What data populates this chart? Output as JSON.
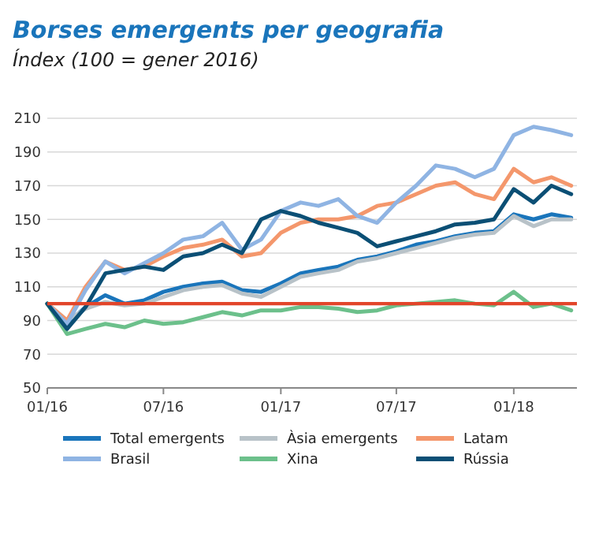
{
  "chart_data": {
    "type": "line",
    "title": "Borses emergents per geografia",
    "subtitle": "Índex (100 = gener 2016)",
    "x": [
      "2016-01-01",
      "2016-02-01",
      "2016-03-01",
      "2016-04-01",
      "2016-05-01",
      "2016-06-01",
      "2016-07-01",
      "2016-08-01",
      "2016-09-01",
      "2016-10-01",
      "2016-11-01",
      "2016-12-01",
      "2017-01-01",
      "2017-02-01",
      "2017-03-01",
      "2017-04-01",
      "2017-05-01",
      "2017-06-01",
      "2017-07-01",
      "2017-08-01",
      "2017-09-01",
      "2017-10-01",
      "2017-11-01",
      "2017-12-01",
      "2018-01-01",
      "2018-02-01",
      "2018-03-01",
      "2018-04-01"
    ],
    "series": [
      {
        "name": "Total emergents",
        "color": "#1a75bb",
        "values": [
          100,
          88,
          98,
          105,
          100,
          102,
          107,
          110,
          112,
          113,
          108,
          107,
          112,
          118,
          120,
          122,
          126,
          128,
          131,
          135,
          137,
          140,
          142,
          143,
          153,
          150,
          153,
          151
        ]
      },
      {
        "name": "Àsia emergents",
        "color": "#b8c2c8",
        "values": [
          100,
          90,
          97,
          101,
          99,
          100,
          104,
          108,
          110,
          111,
          106,
          104,
          110,
          116,
          118,
          120,
          125,
          127,
          130,
          133,
          136,
          139,
          141,
          142,
          152,
          146,
          150,
          150
        ]
      },
      {
        "name": "Latam",
        "color": "#f4976c",
        "values": [
          100,
          90,
          110,
          125,
          120,
          122,
          128,
          133,
          135,
          138,
          128,
          130,
          142,
          148,
          150,
          150,
          152,
          158,
          160,
          165,
          170,
          172,
          165,
          162,
          180,
          172,
          175,
          170
        ]
      },
      {
        "name": "Brasil",
        "color": "#8fb4e3",
        "values": [
          100,
          88,
          108,
          125,
          118,
          124,
          130,
          138,
          140,
          148,
          132,
          138,
          155,
          160,
          158,
          162,
          152,
          148,
          160,
          170,
          182,
          180,
          175,
          180,
          200,
          205,
          203,
          200
        ]
      },
      {
        "name": "Xina",
        "color": "#6cc08b",
        "values": [
          100,
          82,
          85,
          88,
          86,
          90,
          88,
          89,
          92,
          95,
          93,
          96,
          96,
          98,
          98,
          97,
          95,
          96,
          99,
          100,
          101,
          102,
          100,
          99,
          107,
          98,
          100,
          96
        ]
      },
      {
        "name": "Rússia",
        "color": "#0b4f75",
        "values": [
          100,
          85,
          98,
          118,
          120,
          122,
          120,
          128,
          130,
          135,
          130,
          150,
          155,
          152,
          148,
          145,
          142,
          134,
          137,
          140,
          143,
          147,
          148,
          150,
          168,
          160,
          170,
          165
        ]
      }
    ],
    "xlim": [
      "2016-01-01",
      "2018-04-10"
    ],
    "xticks": [
      {
        "value": "2016-01-01",
        "label": "01/16"
      },
      {
        "value": "2016-07-01",
        "label": "07/16"
      },
      {
        "value": "2017-01-01",
        "label": "01/17"
      },
      {
        "value": "2017-07-01",
        "label": "07/17"
      },
      {
        "value": "2018-01-01",
        "label": "01/18"
      }
    ],
    "ylim": [
      50,
      210
    ],
    "yticks": [
      50,
      70,
      90,
      110,
      130,
      150,
      170,
      190,
      210
    ],
    "grid": "y",
    "legend": "bottom",
    "line_style": "solid",
    "marker": "none",
    "ref_lines": [
      {
        "axis": "y",
        "value": 100,
        "color": "#e2452a"
      }
    ]
  }
}
